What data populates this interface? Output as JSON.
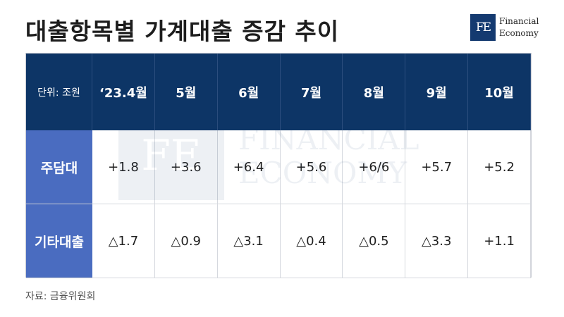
{
  "title": "대출항목별 가계대출 증감 추이",
  "logo": {
    "mark": "FE",
    "line1": "Financial",
    "line2": "Economy"
  },
  "watermark": {
    "mark": "FE",
    "line1": "FINANCIAL",
    "line2": "ECONOMY"
  },
  "table": {
    "unit_label": "단위: 조원",
    "columns": [
      "‘23.4월",
      "5월",
      "6월",
      "7월",
      "8월",
      "9월",
      "10월"
    ],
    "rows": [
      {
        "label": "주담대",
        "values": [
          "+1.8",
          "+3.6",
          "+6.4",
          "+5.6",
          "+6/6",
          "+5.7",
          "+5.2"
        ]
      },
      {
        "label": "기타대출",
        "values": [
          "△1.7",
          "△0.9",
          "△3.1",
          "△0.4",
          "△0.5",
          "△3.3",
          "+1.1"
        ]
      }
    ]
  },
  "colors": {
    "header_bg": "#0d3566",
    "row_label_bg": "#4a6cc0",
    "logo_bg": "#143a70"
  },
  "source": "자료: 금융위원회"
}
